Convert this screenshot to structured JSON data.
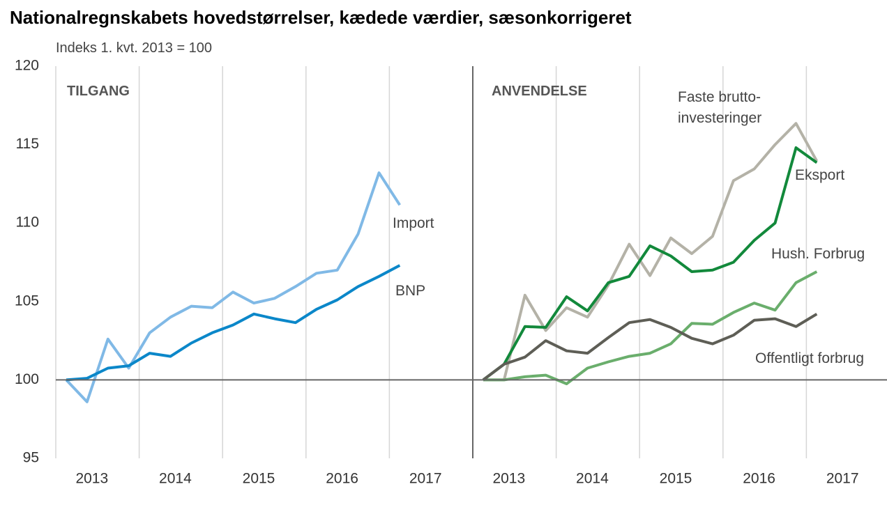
{
  "title": "Nationalregnskabets hovedstørrelser, kædede værdier, sæsonkorrigeret",
  "subtitle": "Indeks 1. kvt. 2013 = 100",
  "ylim": [
    95,
    120
  ],
  "yticks": [
    95,
    100,
    105,
    110,
    115,
    120
  ],
  "baseline": 100,
  "chart_data": [
    {
      "type": "line",
      "panel_label": "TILGANG",
      "x": [
        2013.125,
        2013.375,
        2013.625,
        2013.875,
        2014.125,
        2014.375,
        2014.625,
        2014.875,
        2015.125,
        2015.375,
        2015.625,
        2015.875,
        2016.125,
        2016.375,
        2016.625,
        2016.875,
        2017.125
      ],
      "xlim": [
        2013,
        2018
      ],
      "xticks": [
        2013,
        2014,
        2015,
        2016,
        2017
      ],
      "grid": true,
      "series": [
        {
          "name": "Import",
          "color": "#80b9e6",
          "values": [
            100,
            98.6,
            102.6,
            100.75,
            103.0,
            104.0,
            104.7,
            104.6,
            105.6,
            104.9,
            105.2,
            105.95,
            106.8,
            107.0,
            109.3,
            113.2,
            111.15
          ]
        },
        {
          "name": "BNP",
          "color": "#0b87c9",
          "values": [
            100,
            100.1,
            100.75,
            100.9,
            101.7,
            101.5,
            102.35,
            103.0,
            103.5,
            104.2,
            103.9,
            103.65,
            104.5,
            105.1,
            105.95,
            106.6,
            107.3
          ]
        }
      ]
    },
    {
      "type": "line",
      "panel_label": "ANVENDELSE",
      "x": [
        2013.125,
        2013.375,
        2013.625,
        2013.875,
        2014.125,
        2014.375,
        2014.625,
        2014.875,
        2015.125,
        2015.375,
        2015.625,
        2015.875,
        2016.125,
        2016.375,
        2016.625,
        2016.875,
        2017.125
      ],
      "xlim": [
        2013,
        2018
      ],
      "xticks": [
        2013,
        2014,
        2015,
        2016,
        2017
      ],
      "grid": true,
      "series": [
        {
          "name": "Faste brutto-\ninvesteringer",
          "color": "#b4b2a7",
          "values": [
            100,
            100,
            105.4,
            103.15,
            104.6,
            104.0,
            106.05,
            108.65,
            106.65,
            109.05,
            108.05,
            109.15,
            112.7,
            113.45,
            115.0,
            116.35,
            113.95
          ]
        },
        {
          "name": "Eksport",
          "color": "#12893b",
          "values": [
            100,
            101.0,
            103.4,
            103.35,
            105.3,
            104.4,
            106.2,
            106.6,
            108.55,
            107.9,
            106.9,
            107.0,
            107.5,
            108.9,
            110.0,
            114.8,
            113.85
          ]
        },
        {
          "name": "Hush. Forbrug",
          "color": "#6aae6c",
          "values": [
            100,
            100,
            100.2,
            100.3,
            99.75,
            100.75,
            101.15,
            101.5,
            101.7,
            102.3,
            103.6,
            103.55,
            104.3,
            104.9,
            104.45,
            106.2,
            106.9
          ]
        },
        {
          "name": "Offentligt forbrug",
          "color": "#5e5e56",
          "values": [
            100,
            101.0,
            101.45,
            102.5,
            101.85,
            101.7,
            102.7,
            103.65,
            103.85,
            103.35,
            102.65,
            102.3,
            102.85,
            103.8,
            103.9,
            103.4,
            104.2
          ]
        }
      ]
    }
  ]
}
